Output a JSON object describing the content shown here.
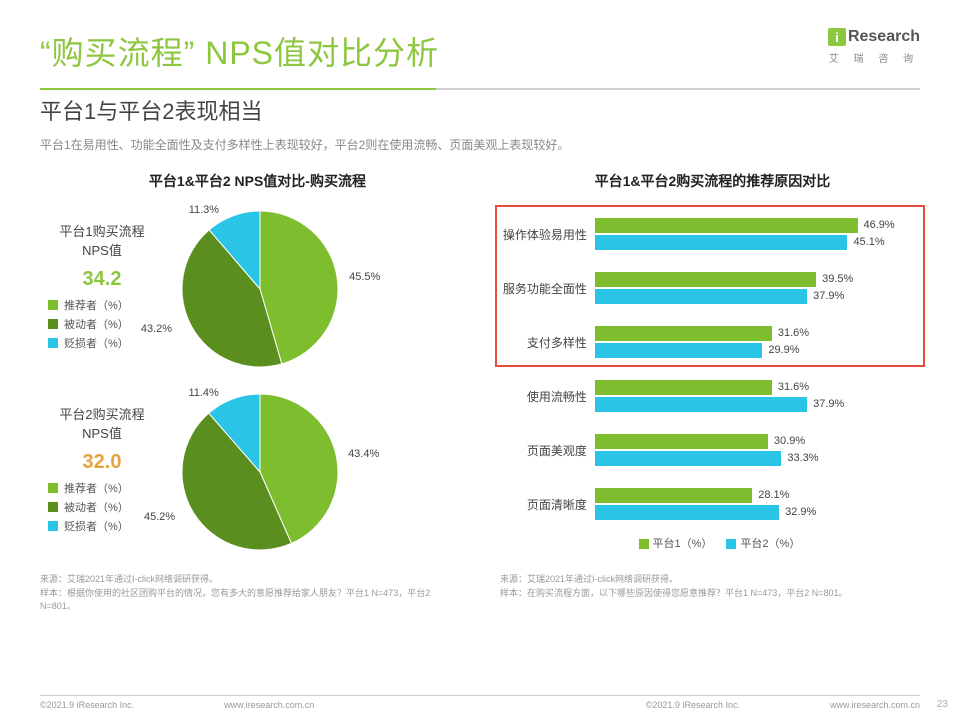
{
  "brand": {
    "name": "Research",
    "sub": "艾 瑞 咨 询",
    "accent": "#8dc63f"
  },
  "title": "“购买流程” NPS值对比分析",
  "subtitle": "平台1与平台2表现相当",
  "description": "平台1在易用性、功能全面性及支付多样性上表现较好，平台2则在使用流畅、页面美观上表现较好。",
  "divider": {
    "green_pct": 45,
    "gray_pct": 55
  },
  "left_chart_title": "平台1&平台2 NPS值对比-购买流程",
  "right_chart_title": "平台1&平台2购买流程的推荐原因对比",
  "colors": {
    "green": "#7ebe2e",
    "dark_green": "#5a8f1f",
    "cyan": "#29c4e6",
    "nps1": "#8dc63f",
    "nps2": "#e6a23c",
    "highlight": "#e74c3c",
    "text": "#444444"
  },
  "pie_legend_labels": [
    "推荐者（%）",
    "被动者（%）",
    "贬损者（%）"
  ],
  "pies": [
    {
      "label": "平台1购买流程\nNPS值",
      "nps": "34.2",
      "nps_color": "#8dc63f",
      "slices": [
        {
          "label": "45.5%",
          "value": 45.5,
          "color": "#7ebe2e"
        },
        {
          "label": "43.2%",
          "value": 43.2,
          "color": "#5a8f1f"
        },
        {
          "label": "11.3%",
          "value": 11.3,
          "color": "#29c4e6"
        }
      ]
    },
    {
      "label": "平台2购买流程\nNPS值",
      "nps": "32.0",
      "nps_color": "#e6a23c",
      "slices": [
        {
          "label": "43.4%",
          "value": 43.4,
          "color": "#7ebe2e"
        },
        {
          "label": "45.2%",
          "value": 45.2,
          "color": "#5a8f1f"
        },
        {
          "label": "11.4%",
          "value": 11.4,
          "color": "#29c4e6"
        }
      ]
    }
  ],
  "bars": {
    "xmax": 50,
    "series": [
      {
        "name": "平台1（%）",
        "color": "#7ebe2e"
      },
      {
        "name": "平台2（%）",
        "color": "#29c4e6"
      }
    ],
    "categories": [
      {
        "label": "操作体验易用性",
        "values": [
          46.9,
          45.1
        ]
      },
      {
        "label": "服务功能全面性",
        "values": [
          39.5,
          37.9
        ]
      },
      {
        "label": "支付多样性",
        "values": [
          31.6,
          29.9
        ]
      },
      {
        "label": "使用流畅性",
        "values": [
          31.6,
          37.9
        ]
      },
      {
        "label": "页面美观度",
        "values": [
          30.9,
          33.3
        ]
      },
      {
        "label": "页面清晰度",
        "values": [
          28.1,
          32.9
        ]
      }
    ],
    "highlight_rows": [
      0,
      2
    ]
  },
  "footnotes": {
    "left": "来源：艾瑞2021年通过I-click网络调研获得。\n样本：根据你使用的社区团购平台的情况，您有多大的意愿推荐给家人朋友？平台1 N=473，平台2 N=801。",
    "right": "来源：艾瑞2021年通过I-click网络调研获得。\n样本：在购买流程方面，以下哪些原因使得您愿意推荐？平台1 N=473，平台2 N=801。"
  },
  "bottom": {
    "copyright": "©2021.9 iResearch Inc.",
    "url": "www.iresearch.com.cn"
  },
  "page_number": "23"
}
